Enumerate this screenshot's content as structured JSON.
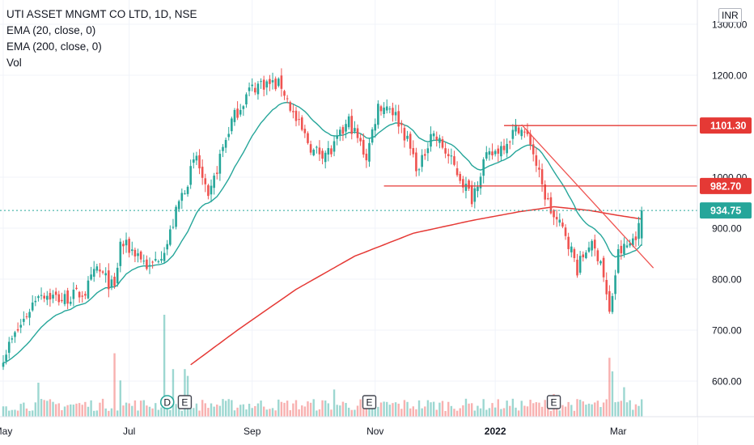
{
  "legend": {
    "title": "UTI ASSET MNGMT CO LTD, 1D, NSE",
    "ema20": "EMA (20, close, 0)",
    "ema200": "EMA (200, close, 0)",
    "vol": "Vol"
  },
  "currency": "INR",
  "colors": {
    "up": "#26a69a",
    "down": "#ef5350",
    "ema20": "#26a69a",
    "ema200": "#e53935",
    "hline": "#e53935",
    "trend": "#ef5350",
    "last": "#26a69a"
  },
  "chart_data": {
    "type": "candlestick",
    "y_ticks": [
      {
        "value": 1300,
        "label": "1300.00"
      },
      {
        "value": 1200,
        "label": "1200.00"
      },
      {
        "value": 1000,
        "label": "1000.00"
      },
      {
        "value": 900,
        "label": "900.00"
      },
      {
        "value": 800,
        "label": "800.00"
      },
      {
        "value": 700,
        "label": "700.00"
      },
      {
        "value": 600,
        "label": "600.00"
      }
    ],
    "x_ticks": [
      {
        "index": 0,
        "label": "May"
      },
      {
        "index": 43,
        "label": "Jul"
      },
      {
        "index": 85,
        "label": "Sep"
      },
      {
        "index": 127,
        "label": "Nov"
      },
      {
        "index": 168,
        "label": "2022"
      },
      {
        "index": 210,
        "label": "Mar"
      }
    ],
    "ylim": [
      540,
      1320
    ],
    "price_labels": [
      {
        "value": 1101.3,
        "label": "1101.30",
        "color": "#e53935"
      },
      {
        "value": 982.7,
        "label": "982.70",
        "color": "#e53935"
      },
      {
        "value": 934.75,
        "label": "934.75",
        "color": "#26a69a"
      }
    ],
    "horizontal_lines": [
      {
        "value": 1101.3,
        "from_index": 171,
        "to_index": 240
      },
      {
        "value": 982.7,
        "from_index": 130,
        "to_index": 240
      }
    ],
    "trend_lines": [
      {
        "from_index": 177,
        "from_value": 1103,
        "to_index": 222,
        "to_value": 822
      }
    ],
    "last_price": 934.75,
    "events": [
      {
        "index": 56,
        "label": "D",
        "shape": "circle"
      },
      {
        "index": 62,
        "label": "E",
        "shape": "square"
      },
      {
        "index": 125,
        "label": "E",
        "shape": "square"
      },
      {
        "index": 188,
        "label": "E",
        "shape": "square"
      }
    ],
    "anchors": [
      {
        "i": 0,
        "p": 650
      },
      {
        "i": 8,
        "p": 730
      },
      {
        "i": 12,
        "p": 775
      },
      {
        "i": 20,
        "p": 760
      },
      {
        "i": 28,
        "p": 775
      },
      {
        "i": 32,
        "p": 820
      },
      {
        "i": 38,
        "p": 780
      },
      {
        "i": 40,
        "p": 870
      },
      {
        "i": 46,
        "p": 850
      },
      {
        "i": 50,
        "p": 820
      },
      {
        "i": 56,
        "p": 870
      },
      {
        "i": 60,
        "p": 950
      },
      {
        "i": 66,
        "p": 1040
      },
      {
        "i": 70,
        "p": 950
      },
      {
        "i": 74,
        "p": 1040
      },
      {
        "i": 78,
        "p": 1110
      },
      {
        "i": 84,
        "p": 1170
      },
      {
        "i": 88,
        "p": 1185
      },
      {
        "i": 95,
        "p": 1180
      },
      {
        "i": 100,
        "p": 1110
      },
      {
        "i": 106,
        "p": 1050
      },
      {
        "i": 112,
        "p": 1050
      },
      {
        "i": 118,
        "p": 1110
      },
      {
        "i": 124,
        "p": 1040
      },
      {
        "i": 128,
        "p": 1140
      },
      {
        "i": 132,
        "p": 1140
      },
      {
        "i": 136,
        "p": 1100
      },
      {
        "i": 142,
        "p": 1010
      },
      {
        "i": 146,
        "p": 1090
      },
      {
        "i": 150,
        "p": 1060
      },
      {
        "i": 156,
        "p": 1000
      },
      {
        "i": 160,
        "p": 960
      },
      {
        "i": 164,
        "p": 1030
      },
      {
        "i": 170,
        "p": 1060
      },
      {
        "i": 176,
        "p": 1100
      },
      {
        "i": 180,
        "p": 1070
      },
      {
        "i": 184,
        "p": 980
      },
      {
        "i": 188,
        "p": 920
      },
      {
        "i": 192,
        "p": 890
      },
      {
        "i": 196,
        "p": 820
      },
      {
        "i": 200,
        "p": 870
      },
      {
        "i": 204,
        "p": 840
      },
      {
        "i": 207,
        "p": 730
      },
      {
        "i": 210,
        "p": 850
      },
      {
        "i": 214,
        "p": 870
      },
      {
        "i": 217,
        "p": 900
      },
      {
        "i": 218,
        "p": 934.75
      }
    ],
    "ema200_anchors": [
      {
        "i": 64,
        "p": 632
      },
      {
        "i": 80,
        "p": 700
      },
      {
        "i": 100,
        "p": 780
      },
      {
        "i": 120,
        "p": 845
      },
      {
        "i": 140,
        "p": 890
      },
      {
        "i": 160,
        "p": 915
      },
      {
        "i": 176,
        "p": 932
      },
      {
        "i": 188,
        "p": 942
      },
      {
        "i": 200,
        "p": 935
      },
      {
        "i": 210,
        "p": 925
      },
      {
        "i": 218,
        "p": 918
      }
    ],
    "volume_spikes": [
      {
        "i": 12,
        "v": 1.5
      },
      {
        "i": 38,
        "v": 2.8
      },
      {
        "i": 40,
        "v": 1.6
      },
      {
        "i": 55,
        "v": 4.5
      },
      {
        "i": 58,
        "v": 2.1
      },
      {
        "i": 62,
        "v": 2.1
      },
      {
        "i": 63,
        "v": 1.8
      },
      {
        "i": 113,
        "v": 1.2
      },
      {
        "i": 188,
        "v": 1.0
      },
      {
        "i": 207,
        "v": 2.6
      },
      {
        "i": 208,
        "v": 2.0
      },
      {
        "i": 212,
        "v": 1.3
      }
    ]
  }
}
